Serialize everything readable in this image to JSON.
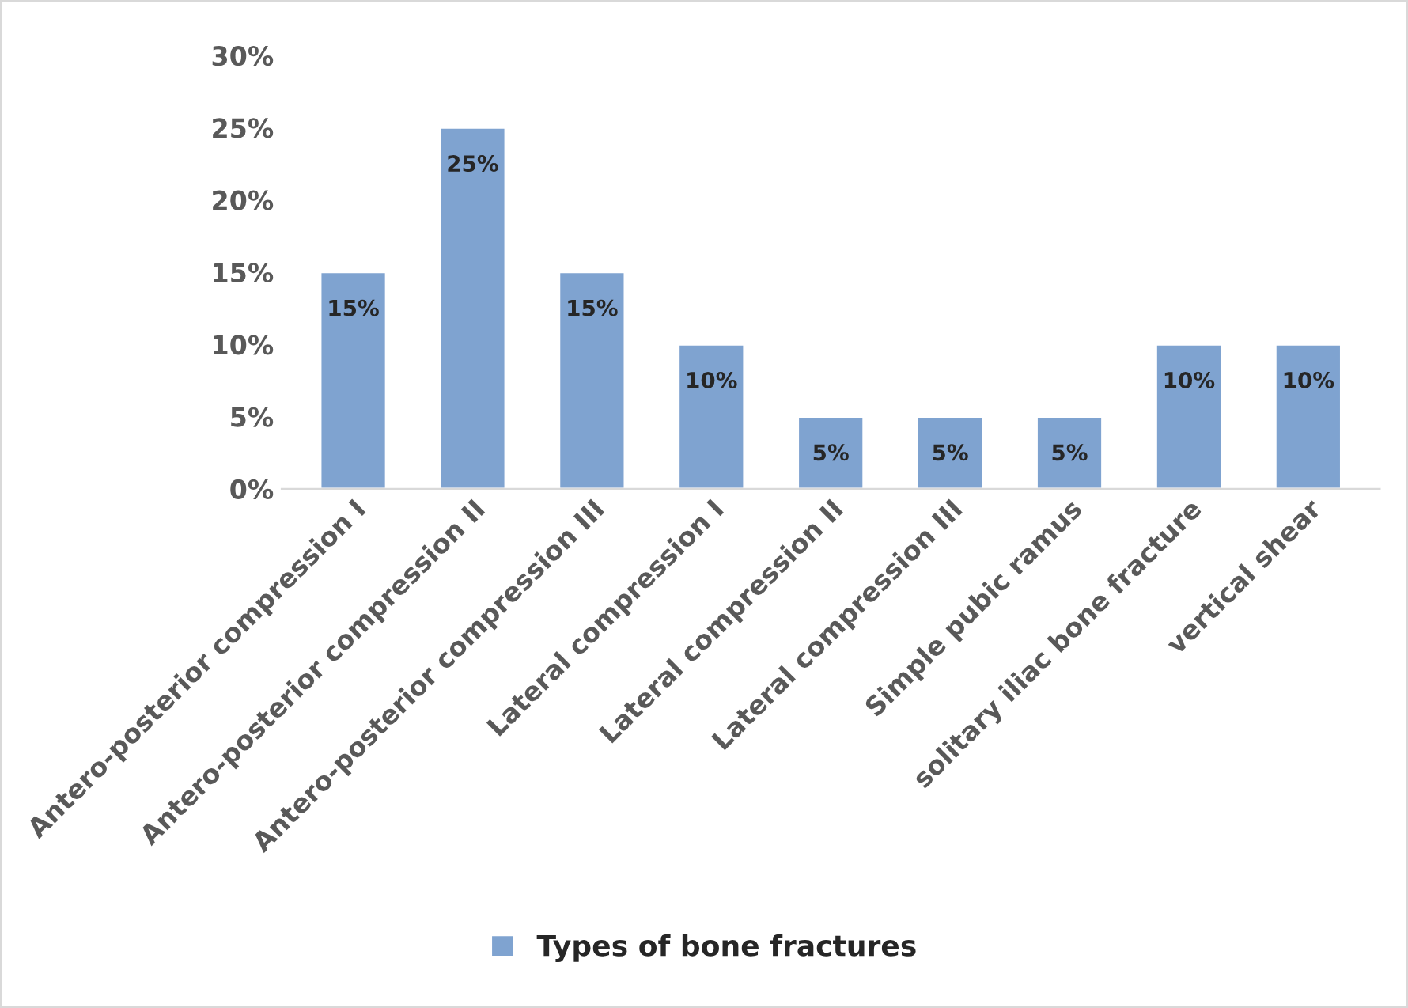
{
  "chart_data": {
    "type": "bar",
    "categories": [
      "Antero-posterior compression I",
      "Antero-posterior compression II",
      "Antero-posterior compression III",
      "Lateral compression I",
      "Lateral compression II",
      "Lateral compression III",
      "Simple pubic ramus",
      "solitary iliac bone fracture",
      "vertical shear"
    ],
    "series": [
      {
        "name": "Types of bone fractures",
        "color": "#7fa3d0",
        "values": [
          15,
          25,
          15,
          10,
          5,
          5,
          5,
          10,
          10
        ],
        "value_labels": [
          "15%",
          "25%",
          "15%",
          "10%",
          "5%",
          "5%",
          "5%",
          "10%",
          "10%"
        ]
      }
    ],
    "ylim": [
      0,
      30
    ],
    "yticks": [
      {
        "value": 0,
        "label": "0%"
      },
      {
        "value": 5,
        "label": "5%"
      },
      {
        "value": 10,
        "label": "10%"
      },
      {
        "value": 15,
        "label": "15%"
      },
      {
        "value": 20,
        "label": "20%"
      },
      {
        "value": 25,
        "label": "25%"
      },
      {
        "value": 30,
        "label": "30%"
      }
    ],
    "grid": false,
    "legend": "bottom"
  }
}
